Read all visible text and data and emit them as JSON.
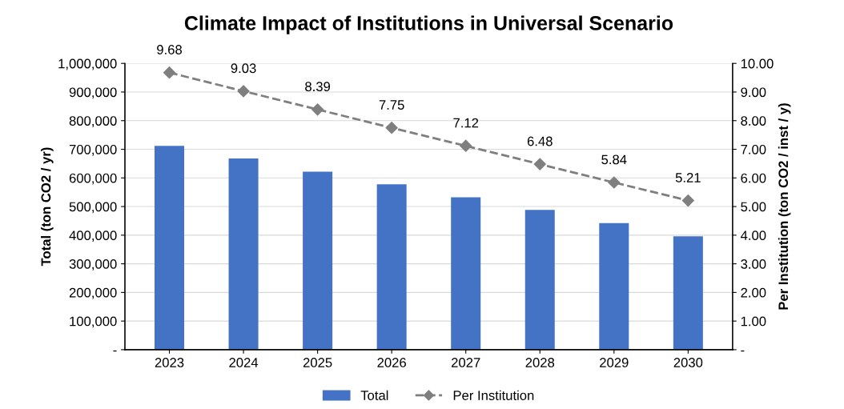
{
  "chart_data": {
    "type": "bar",
    "title": "Climate Impact of Institutions in Universal Scenario",
    "ylabel": "Total (ton CO2 / yr)",
    "y2label": "Per Institution (ton CO2 / inst / y)",
    "categories": [
      "2023",
      "2024",
      "2025",
      "2026",
      "2027",
      "2028",
      "2029",
      "2030"
    ],
    "series": [
      {
        "name": "Total",
        "color": "#4472c4",
        "values": [
          712000,
          668000,
          622000,
          578000,
          532000,
          488000,
          442000,
          396000
        ]
      },
      {
        "name": "Per Institution",
        "type": "line",
        "axis": "y2",
        "color": "#7f7f7f",
        "marker": "diamond",
        "line_style": "dashed",
        "values": [
          9.68,
          9.03,
          8.39,
          7.75,
          7.12,
          6.48,
          5.84,
          5.21
        ],
        "value_labels": [
          "9.68",
          "9.03",
          "8.39",
          "7.75",
          "7.12",
          "6.48",
          "5.84",
          "5.21"
        ]
      }
    ],
    "ylim": [
      0,
      1000000
    ],
    "yticks": [
      {
        "value": 0,
        "label": "-"
      },
      {
        "value": 100000,
        "label": "100,000"
      },
      {
        "value": 200000,
        "label": "200,000"
      },
      {
        "value": 300000,
        "label": "300,000"
      },
      {
        "value": 400000,
        "label": "400,000"
      },
      {
        "value": 500000,
        "label": "500,000"
      },
      {
        "value": 600000,
        "label": "600,000"
      },
      {
        "value": 700000,
        "label": "700,000"
      },
      {
        "value": 800000,
        "label": "800,000"
      },
      {
        "value": 900000,
        "label": "900,000"
      },
      {
        "value": 1000000,
        "label": "1,000,000"
      }
    ],
    "y2lim": [
      0,
      10
    ],
    "y2ticks": [
      {
        "value": 0,
        "label": "-"
      },
      {
        "value": 1,
        "label": "1.00"
      },
      {
        "value": 2,
        "label": "2.00"
      },
      {
        "value": 3,
        "label": "3.00"
      },
      {
        "value": 4,
        "label": "4.00"
      },
      {
        "value": 5,
        "label": "5.00"
      },
      {
        "value": 6,
        "label": "6.00"
      },
      {
        "value": 7,
        "label": "7.00"
      },
      {
        "value": 8,
        "label": "8.00"
      },
      {
        "value": 9,
        "label": "9.00"
      },
      {
        "value": 10,
        "label": "10.00"
      }
    ],
    "grid": "y",
    "legend": "bottom"
  }
}
